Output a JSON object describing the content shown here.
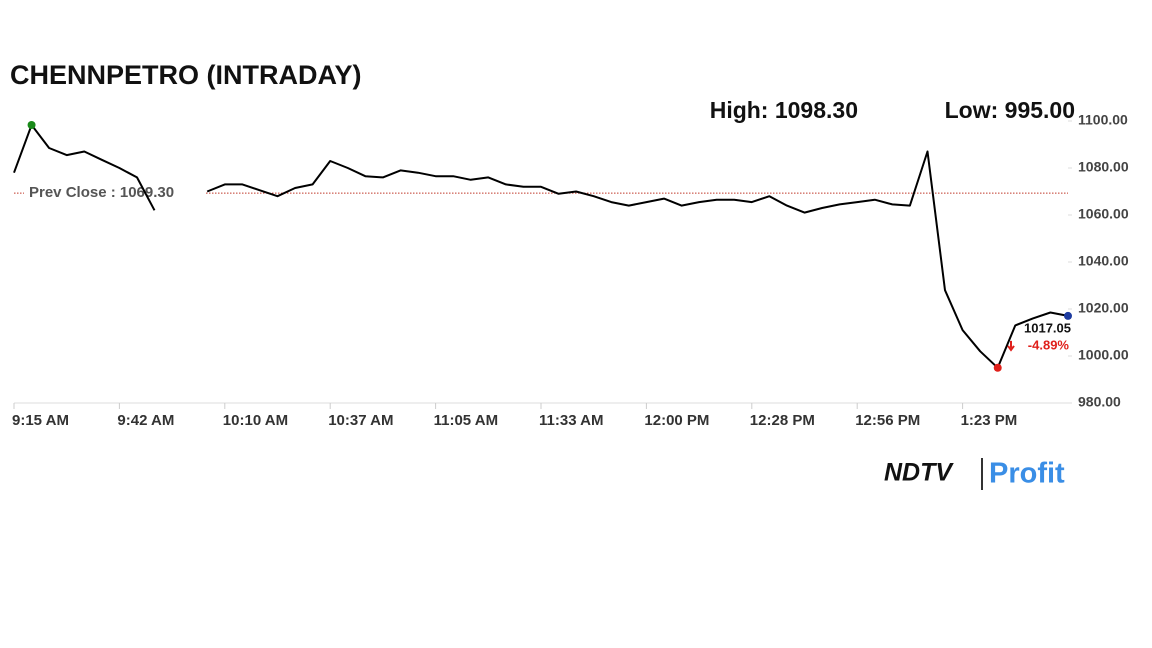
{
  "chart_data": {
    "type": "line",
    "title": "CHENNPETRO (INTRADAY)",
    "high": {
      "value": 1098.3,
      "label": "High: 1098.30",
      "color": "#1a8a1a"
    },
    "low": {
      "value": 995.0,
      "label": "Low: 995.00",
      "color": "#e0201b"
    },
    "prev_close": {
      "value": 1069.3,
      "label": "Prev Close : 1069.30",
      "color": "#c0392b"
    },
    "change": {
      "value": -4.89,
      "label": "-4.89%",
      "color": "#e0201b"
    },
    "last_color": "#1e3ca0",
    "categories": [
      "9:15 AM",
      null,
      null,
      null,
      null,
      null,
      "9:42 AM",
      null,
      null,
      null,
      null,
      null,
      "10:10 AM",
      null,
      null,
      null,
      null,
      null,
      "10:37 AM",
      null,
      null,
      null,
      null,
      null,
      "11:05 AM",
      null,
      null,
      null,
      null,
      null,
      "11:33 AM",
      null,
      null,
      null,
      null,
      null,
      "12:00 PM",
      null,
      null,
      null,
      null,
      null,
      "12:28 PM",
      null,
      null,
      null,
      null,
      null,
      "12:56 PM",
      null,
      null,
      null,
      null,
      null,
      "1:23 PM",
      null,
      null,
      null,
      null,
      null,
      null
    ],
    "series": [
      {
        "name": "CHENNPETRO",
        "color": "#000000",
        "values": [
          1078,
          1098.3,
          1088.5,
          1085.5,
          1087,
          1083.5,
          1080,
          1076,
          1062,
          null,
          null,
          1070,
          1073,
          1073,
          1070.5,
          1068,
          1071.5,
          1073,
          1083,
          1080,
          1076.5,
          1076,
          1079,
          1078,
          1076.5,
          1076.5,
          1075,
          1076,
          1073,
          1072,
          1072,
          1069,
          1070,
          1068,
          1065.5,
          1064,
          1065.5,
          1067,
          1064,
          1065.5,
          1066.5,
          1066.5,
          1065.5,
          1068,
          1064,
          1061,
          1063,
          1064.5,
          1065.5,
          1066.5,
          1064.5,
          1064,
          1087,
          1028,
          1011,
          1002,
          995.0,
          1013,
          1016,
          1018.5,
          1017.05
        ]
      }
    ],
    "ylim": [
      980,
      1100
    ],
    "yticks": [
      {
        "value": 980,
        "label": "980.00"
      },
      {
        "value": 1000,
        "label": "1000.00"
      },
      {
        "value": 1020,
        "label": "1020.00"
      },
      {
        "value": 1040,
        "label": "1040.00"
      },
      {
        "value": 1060,
        "label": "1060.00"
      },
      {
        "value": 1080,
        "label": "1080.00"
      },
      {
        "value": 1100,
        "label": "1100.00"
      }
    ],
    "logo": {
      "brand": "NDTV",
      "product": "Profit"
    }
  }
}
